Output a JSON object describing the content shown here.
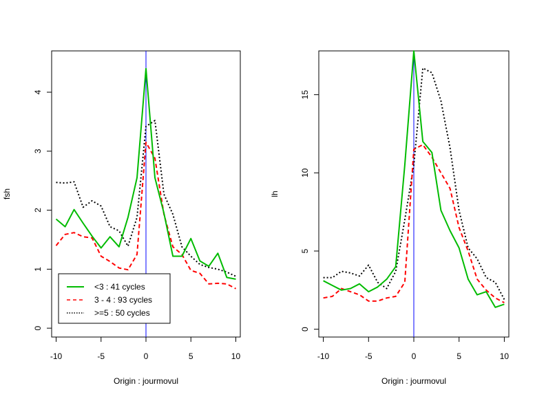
{
  "chart_data": [
    {
      "type": "line",
      "xlabel": "Origin :  jourmovul",
      "ylabel": "fsh",
      "xlim": [
        -10.5,
        10.5
      ],
      "ylim": [
        -0.15,
        4.7
      ],
      "xticks": [
        -10,
        -5,
        0,
        5,
        10
      ],
      "yticks": [
        0,
        1,
        2,
        3,
        4
      ],
      "reference_line_x": 0,
      "reference_line_color": "#0000ff",
      "x": [
        -10,
        -9,
        -8,
        -7,
        -6,
        -5,
        -4,
        -3,
        -2,
        -1,
        0,
        1,
        2,
        3,
        4,
        5,
        6,
        7,
        8,
        9,
        10
      ],
      "series": [
        {
          "name": "<3 : 41 cycles",
          "color": "#00bb00",
          "style": "solid",
          "values": [
            1.85,
            1.72,
            2.01,
            1.78,
            1.56,
            1.36,
            1.55,
            1.38,
            1.88,
            2.55,
            4.4,
            2.55,
            1.95,
            1.22,
            1.22,
            1.52,
            1.14,
            1.05,
            1.27,
            0.86,
            0.83
          ]
        },
        {
          "name": "3 - 4 : 93 cycles",
          "color": "#ff0000",
          "style": "dashed",
          "values": [
            1.4,
            1.59,
            1.62,
            1.55,
            1.53,
            1.22,
            1.13,
            1.02,
            0.99,
            1.25,
            3.15,
            2.88,
            1.93,
            1.38,
            1.25,
            0.98,
            0.93,
            0.75,
            0.76,
            0.75,
            0.67
          ]
        },
        {
          "name": ">=5 : 50 cycles",
          "color": "#000000",
          "style": "dotted",
          "values": [
            2.47,
            2.46,
            2.48,
            2.05,
            2.16,
            2.07,
            1.72,
            1.65,
            1.39,
            1.88,
            3.42,
            3.52,
            2.27,
            1.93,
            1.38,
            1.22,
            1.08,
            1.03,
            1.0,
            0.95,
            0.88
          ]
        }
      ],
      "legend": {
        "placement": "bottom-left",
        "entries": [
          "<3 : 41 cycles",
          "3 - 4 : 93 cycles",
          ">=5 : 50 cycles"
        ]
      }
    },
    {
      "type": "line",
      "xlabel": "Origin :  jourmovul",
      "ylabel": "lh",
      "xlim": [
        -10.5,
        10.5
      ],
      "ylim": [
        -0.5,
        17.8
      ],
      "xticks": [
        -10,
        -5,
        0,
        5,
        10
      ],
      "yticks": [
        0,
        5,
        10,
        15
      ],
      "reference_line_x": 0,
      "reference_line_color": "#0000ff",
      "x": [
        -10,
        -9,
        -8,
        -7,
        -6,
        -5,
        -4,
        -3,
        -2,
        -1,
        0,
        1,
        2,
        3,
        4,
        5,
        6,
        7,
        8,
        9,
        10
      ],
      "series": [
        {
          "name": "<3 : 41 cycles",
          "color": "#00bb00",
          "style": "solid",
          "values": [
            3.1,
            2.8,
            2.5,
            2.6,
            2.9,
            2.4,
            2.7,
            3.2,
            4.0,
            10.5,
            17.8,
            12.0,
            11.3,
            7.6,
            6.3,
            5.2,
            3.2,
            2.2,
            2.4,
            1.4,
            1.6
          ]
        },
        {
          "name": "3 - 4 : 93 cycles",
          "color": "#ff0000",
          "style": "dashed",
          "values": [
            2.0,
            2.1,
            2.6,
            2.4,
            2.2,
            1.8,
            1.8,
            2.0,
            2.1,
            3.0,
            11.5,
            11.8,
            11.0,
            10.0,
            9.0,
            6.5,
            5.0,
            3.2,
            2.5,
            2.0,
            1.7
          ]
        },
        {
          "name": ">=5 : 50 cycles",
          "color": "#000000",
          "style": "dotted",
          "values": [
            3.3,
            3.3,
            3.7,
            3.6,
            3.4,
            4.1,
            3.0,
            2.6,
            3.7,
            7.0,
            10.5,
            16.7,
            16.4,
            14.6,
            11.6,
            7.6,
            5.2,
            4.5,
            3.3,
            3.0,
            1.9
          ]
        }
      ]
    }
  ]
}
